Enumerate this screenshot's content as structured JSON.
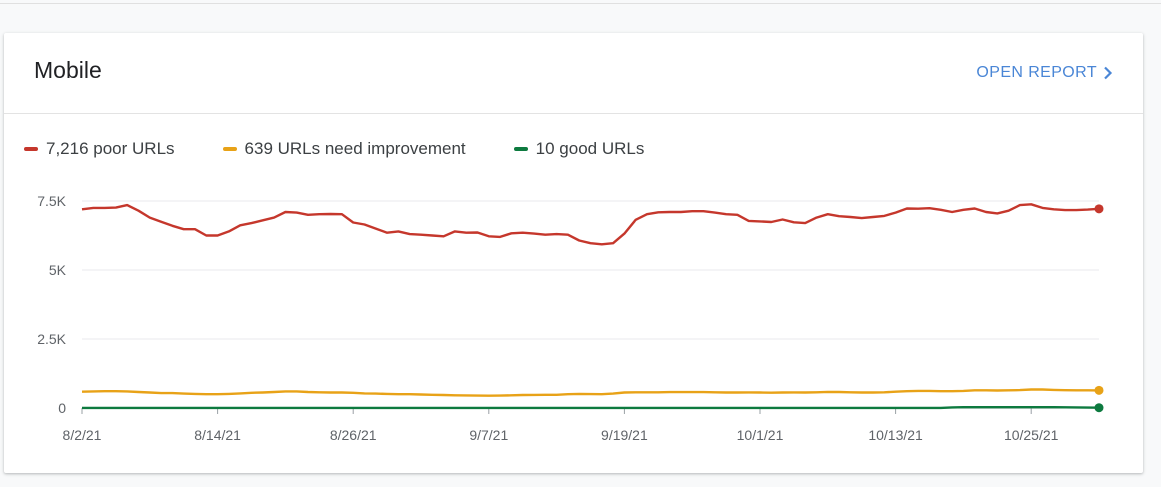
{
  "card": {
    "title": "Mobile",
    "open_report_label": "OPEN REPORT"
  },
  "legend": [
    {
      "label": "7,216 poor URLs",
      "color": "#c5372c"
    },
    {
      "label": "639 URLs need improvement",
      "color": "#e8a217"
    },
    {
      "label": "10 good URLs",
      "color": "#0d7a3f"
    }
  ],
  "chart_data": {
    "type": "line",
    "x_tick_labels": [
      "8/2/21",
      "8/14/21",
      "8/26/21",
      "9/7/21",
      "9/19/21",
      "10/1/21",
      "10/13/21",
      "10/25/21"
    ],
    "x_tick_dates": [
      "2021-08-02",
      "2021-08-14",
      "2021-08-26",
      "2021-09-07",
      "2021-09-19",
      "2021-10-01",
      "2021-10-13",
      "2021-10-25"
    ],
    "y_tick_labels": [
      "0",
      "2.5K",
      "5K",
      "7.5K"
    ],
    "y_ticks": [
      0,
      2500,
      5000,
      7500
    ],
    "ylim": [
      0,
      7500
    ],
    "xlim": [
      "2021-08-02",
      "2021-10-31"
    ],
    "grid": true,
    "legend_position": "top-left",
    "x": [
      "2021-08-02",
      "2021-08-03",
      "2021-08-04",
      "2021-08-05",
      "2021-08-06",
      "2021-08-07",
      "2021-08-08",
      "2021-08-09",
      "2021-08-10",
      "2021-08-11",
      "2021-08-12",
      "2021-08-13",
      "2021-08-14",
      "2021-08-15",
      "2021-08-16",
      "2021-08-17",
      "2021-08-18",
      "2021-08-19",
      "2021-08-20",
      "2021-08-21",
      "2021-08-22",
      "2021-08-23",
      "2021-08-24",
      "2021-08-25",
      "2021-08-26",
      "2021-08-27",
      "2021-08-28",
      "2021-08-29",
      "2021-08-30",
      "2021-08-31",
      "2021-09-01",
      "2021-09-02",
      "2021-09-03",
      "2021-09-04",
      "2021-09-05",
      "2021-09-06",
      "2021-09-07",
      "2021-09-08",
      "2021-09-09",
      "2021-09-10",
      "2021-09-11",
      "2021-09-12",
      "2021-09-13",
      "2021-09-14",
      "2021-09-15",
      "2021-09-16",
      "2021-09-17",
      "2021-09-18",
      "2021-09-19",
      "2021-09-20",
      "2021-09-21",
      "2021-09-22",
      "2021-09-23",
      "2021-09-24",
      "2021-09-25",
      "2021-09-26",
      "2021-09-27",
      "2021-09-28",
      "2021-09-29",
      "2021-09-30",
      "2021-10-01",
      "2021-10-02",
      "2021-10-03",
      "2021-10-04",
      "2021-10-05",
      "2021-10-06",
      "2021-10-07",
      "2021-10-08",
      "2021-10-09",
      "2021-10-10",
      "2021-10-11",
      "2021-10-12",
      "2021-10-13",
      "2021-10-14",
      "2021-10-15",
      "2021-10-16",
      "2021-10-17",
      "2021-10-18",
      "2021-10-19",
      "2021-10-20",
      "2021-10-21",
      "2021-10-22",
      "2021-10-23",
      "2021-10-24",
      "2021-10-25",
      "2021-10-26",
      "2021-10-27",
      "2021-10-28",
      "2021-10-29",
      "2021-10-30",
      "2021-10-31"
    ],
    "series": [
      {
        "name": "7,216 poor URLs",
        "color": "#c5372c",
        "values": [
          7200,
          7250,
          7250,
          7260,
          7350,
          7150,
          6900,
          6750,
          6600,
          6480,
          6480,
          6250,
          6250,
          6400,
          6620,
          6700,
          6800,
          6900,
          7100,
          7080,
          7000,
          7020,
          7030,
          7020,
          6720,
          6650,
          6500,
          6350,
          6400,
          6300,
          6280,
          6250,
          6220,
          6400,
          6350,
          6360,
          6220,
          6200,
          6330,
          6350,
          6320,
          6280,
          6300,
          6280,
          6070,
          5970,
          5930,
          5970,
          6320,
          6820,
          7020,
          7090,
          7100,
          7100,
          7130,
          7130,
          7080,
          7020,
          7000,
          6780,
          6760,
          6740,
          6830,
          6730,
          6700,
          6900,
          7020,
          6950,
          6920,
          6880,
          6920,
          6960,
          7080,
          7230,
          7220,
          7240,
          7180,
          7100,
          7180,
          7230,
          7100,
          7050,
          7150,
          7350,
          7380,
          7250,
          7200,
          7170,
          7170,
          7190,
          7216
        ]
      },
      {
        "name": "639 URLs need improvement",
        "color": "#e8a217",
        "values": [
          590,
          600,
          610,
          610,
          600,
          580,
          560,
          540,
          540,
          520,
          510,
          500,
          500,
          510,
          530,
          550,
          560,
          580,
          600,
          600,
          580,
          570,
          560,
          560,
          550,
          530,
          520,
          510,
          500,
          500,
          490,
          480,
          470,
          460,
          455,
          450,
          445,
          450,
          460,
          470,
          475,
          480,
          480,
          500,
          510,
          505,
          500,
          520,
          560,
          570,
          570,
          570,
          575,
          575,
          575,
          575,
          570,
          560,
          560,
          565,
          560,
          555,
          560,
          565,
          560,
          570,
          585,
          580,
          570,
          560,
          560,
          570,
          590,
          610,
          620,
          620,
          610,
          610,
          620,
          640,
          640,
          635,
          640,
          650,
          670,
          670,
          655,
          645,
          640,
          640,
          639
        ]
      },
      {
        "name": "10 good URLs",
        "color": "#0d7a3f",
        "values": [
          5,
          5,
          5,
          5,
          5,
          5,
          5,
          5,
          5,
          5,
          5,
          5,
          5,
          5,
          5,
          5,
          5,
          5,
          5,
          5,
          5,
          5,
          5,
          5,
          5,
          5,
          5,
          5,
          5,
          5,
          5,
          5,
          5,
          5,
          5,
          5,
          5,
          5,
          5,
          5,
          5,
          5,
          5,
          5,
          5,
          5,
          5,
          5,
          5,
          5,
          5,
          5,
          5,
          5,
          5,
          5,
          5,
          5,
          5,
          5,
          5,
          5,
          5,
          5,
          5,
          5,
          5,
          5,
          5,
          5,
          5,
          5,
          5,
          5,
          5,
          5,
          5,
          20,
          30,
          30,
          30,
          30,
          30,
          30,
          30,
          30,
          30,
          25,
          20,
          15,
          10
        ]
      }
    ]
  }
}
